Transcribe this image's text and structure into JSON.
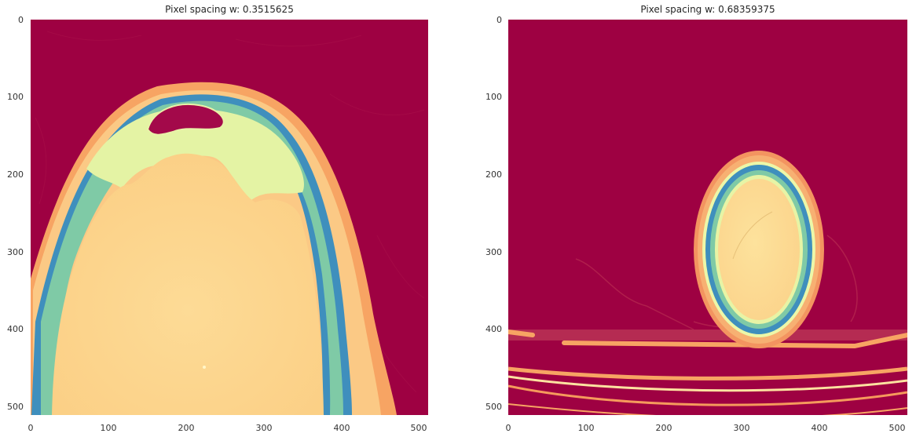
{
  "figure": {
    "panels": [
      {
        "title": "Pixel spacing w: 0.3515625",
        "x_ticks": [
          "0",
          "100",
          "200",
          "300",
          "400",
          "500"
        ],
        "y_ticks": [
          "0",
          "100",
          "200",
          "300",
          "400",
          "500"
        ],
        "colormap": "Spectral"
      },
      {
        "title": "Pixel spacing w: 0.68359375",
        "x_ticks": [
          "0",
          "100",
          "200",
          "300",
          "400",
          "500"
        ],
        "y_ticks": [
          "0",
          "100",
          "200",
          "300",
          "400",
          "500"
        ],
        "colormap": "Spectral"
      }
    ],
    "colors": {
      "background_dark": "#9e0142",
      "soft_tissue": "#fdd28a",
      "skin": "#f59a5c",
      "bone_light": "#e6f598",
      "bone_mid": "#66c2a5",
      "bone_dense": "#3288bd"
    }
  }
}
